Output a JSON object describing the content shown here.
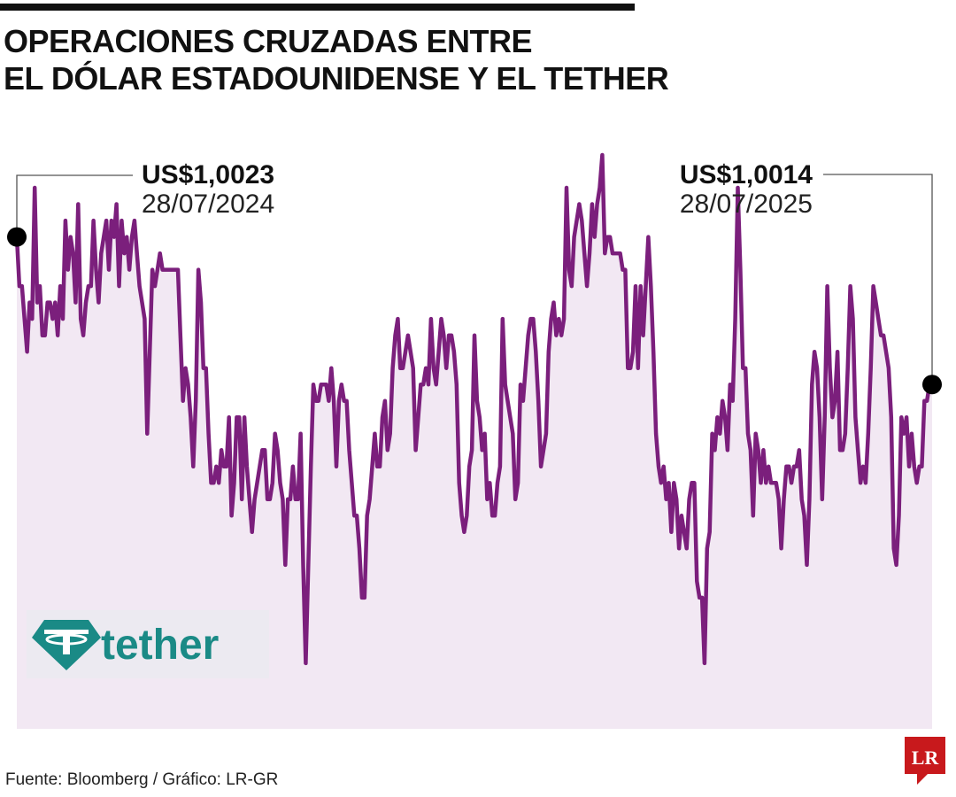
{
  "title_lines": [
    "OPERACIONES CRUZADAS ENTRE",
    "EL DÓLAR ESTADOUNIDENSE Y EL TETHER"
  ],
  "source": "Fuente: Bloomberg / Gráfico: LR-GR",
  "logo": {
    "icon": "tether-icon",
    "text": "tether",
    "color": "#1a8a86",
    "bg": "#eceaf1"
  },
  "publisher_logo": {
    "text": "LR",
    "color": "#c8191c"
  },
  "colors": {
    "line": "#7b1f7c",
    "area": "#f2e8f3",
    "marker": "#000000",
    "leader": "#555555"
  },
  "chart_data": {
    "type": "area",
    "x_start": "28/07/2024",
    "x_end": "28/07/2025",
    "ylim": [
      0.9993,
      1.0028
    ],
    "annotations": [
      {
        "value": "US$1,0023",
        "date": "28/07/2024",
        "point": "start"
      },
      {
        "value": "US$1,0014",
        "date": "28/07/2025",
        "point": "end"
      }
    ],
    "values": [
      1.0023,
      1.002,
      1.002,
      1.0018,
      1.0016,
      1.0019,
      1.0018,
      1.0026,
      1.0019,
      1.002,
      1.0017,
      1.0017,
      1.0019,
      1.0019,
      1.0018,
      1.0019,
      1.0017,
      1.002,
      1.0018,
      1.0024,
      1.0021,
      1.0023,
      1.0022,
      1.0019,
      1.0025,
      1.0018,
      1.0017,
      1.0019,
      1.002,
      1.002,
      1.0024,
      1.0021,
      1.0019,
      1.0022,
      1.0023,
      1.0024,
      1.0021,
      1.0024,
      1.0023,
      1.0025,
      1.002,
      1.0024,
      1.0022,
      1.0023,
      1.0021,
      1.0023,
      1.0024,
      1.0022,
      1.002,
      1.0019,
      1.0018,
      1.0011,
      1.0016,
      1.0021,
      1.002,
      1.0021,
      1.0022,
      1.0021,
      1.0021,
      1.0021,
      1.0021,
      1.0021,
      1.0021,
      1.0021,
      1.0017,
      1.0013,
      1.0015,
      1.0014,
      1.0012,
      1.0009,
      1.0013,
      1.0021,
      1.0019,
      1.0015,
      1.0015,
      1.0011,
      1.0008,
      1.0008,
      1.0009,
      1.0008,
      1.001,
      1.0009,
      1.0009,
      1.0012,
      1.0006,
      1.0008,
      1.0012,
      1.0012,
      1.0007,
      1.0012,
      1.0009,
      1.0007,
      1.0005,
      1.0007,
      1.0008,
      1.0009,
      1.001,
      1.001,
      1.0007,
      1.0007,
      1.0008,
      1.0011,
      1.001,
      1.0008,
      1.0007,
      1.0003,
      1.0007,
      1.0007,
      1.0009,
      1.0007,
      1.0007,
      1.0011,
      1.0003,
      0.9997,
      1.0003,
      1.0009,
      1.0014,
      1.0013,
      1.0013,
      1.0014,
      1.0014,
      1.0014,
      1.0013,
      1.0015,
      1.0013,
      1.0009,
      1.0013,
      1.0014,
      1.0013,
      1.0013,
      1.001,
      1.0008,
      1.0006,
      1.0006,
      1.0004,
      1.0001,
      1.0001,
      1.0006,
      1.0007,
      1.0009,
      1.0011,
      1.0009,
      1.0009,
      1.0012,
      1.0013,
      1.001,
      1.0011,
      1.0015,
      1.0017,
      1.0018,
      1.0015,
      1.0015,
      1.0016,
      1.0017,
      1.0016,
      1.0015,
      1.001,
      1.0012,
      1.0014,
      1.0014,
      1.0015,
      1.0014,
      1.0018,
      1.0015,
      1.0014,
      1.0016,
      1.0018,
      1.0017,
      1.0015,
      1.0017,
      1.0017,
      1.0016,
      1.0014,
      1.0008,
      1.0006,
      1.0005,
      1.0006,
      1.0009,
      1.001,
      1.0017,
      1.0013,
      1.0012,
      1.001,
      1.0011,
      1.0007,
      1.0008,
      1.0006,
      1.0006,
      1.0008,
      1.0009,
      1.0018,
      1.0014,
      1.0013,
      1.0012,
      1.0011,
      1.0007,
      1.0008,
      1.0014,
      1.0013,
      1.0015,
      1.0017,
      1.0018,
      1.0018,
      1.0016,
      1.0013,
      1.0009,
      1.001,
      1.0011,
      1.0016,
      1.0018,
      1.0019,
      1.0017,
      1.0018,
      1.0017,
      1.0018,
      1.0026,
      1.0021,
      1.002,
      1.0023,
      1.0024,
      1.0025,
      1.0024,
      1.0022,
      1.002,
      1.0022,
      1.0025,
      1.0023,
      1.0025,
      1.0026,
      1.0028,
      1.0022,
      1.0023,
      1.0023,
      1.0022,
      1.0022,
      1.0022,
      1.0022,
      1.0021,
      1.0021,
      1.0015,
      1.0015,
      1.0016,
      1.002,
      1.0015,
      1.002,
      1.0017,
      1.002,
      1.0023,
      1.002,
      1.0016,
      1.0011,
      1.0009,
      1.0008,
      1.0009,
      1.0007,
      1.0008,
      1.0005,
      1.0008,
      1.0007,
      1.0004,
      1.0006,
      1.0005,
      1.0004,
      1.0007,
      1.0008,
      1.0008,
      1.0002,
      1.0001,
      1.0001,
      0.9997,
      1.0004,
      1.0005,
      1.0011,
      1.001,
      1.0012,
      1.0011,
      1.0013,
      1.0012,
      1.001,
      1.0014,
      1.0013,
      1.0018,
      1.0026,
      1.0021,
      1.0015,
      1.0015,
      1.0011,
      1.001,
      1.0006,
      1.0011,
      1.001,
      1.0008,
      1.001,
      1.0008,
      1.0009,
      1.0008,
      1.0008,
      1.0008,
      1.0007,
      1.0004,
      1.0007,
      1.0009,
      1.0009,
      1.0008,
      1.0009,
      1.0009,
      1.001,
      1.0007,
      1.0006,
      1.0003,
      1.0007,
      1.0014,
      1.0016,
      1.0015,
      1.0012,
      1.0007,
      1.0012,
      1.002,
      1.0015,
      1.0012,
      1.0013,
      1.0016,
      1.001,
      1.001,
      1.0011,
      1.0015,
      1.002,
      1.0018,
      1.0012,
      1.001,
      1.0008,
      1.0009,
      1.0008,
      1.0011,
      1.0015,
      1.002,
      1.0019,
      1.0018,
      1.0017,
      1.0017,
      1.0016,
      1.0015,
      1.0012,
      1.0004,
      1.0003,
      1.0006,
      1.0012,
      1.0011,
      1.0012,
      1.0009,
      1.0011,
      1.0009,
      1.0008,
      1.0009,
      1.0009,
      1.0013,
      1.0013,
      1.0014,
      1.0014
    ]
  }
}
